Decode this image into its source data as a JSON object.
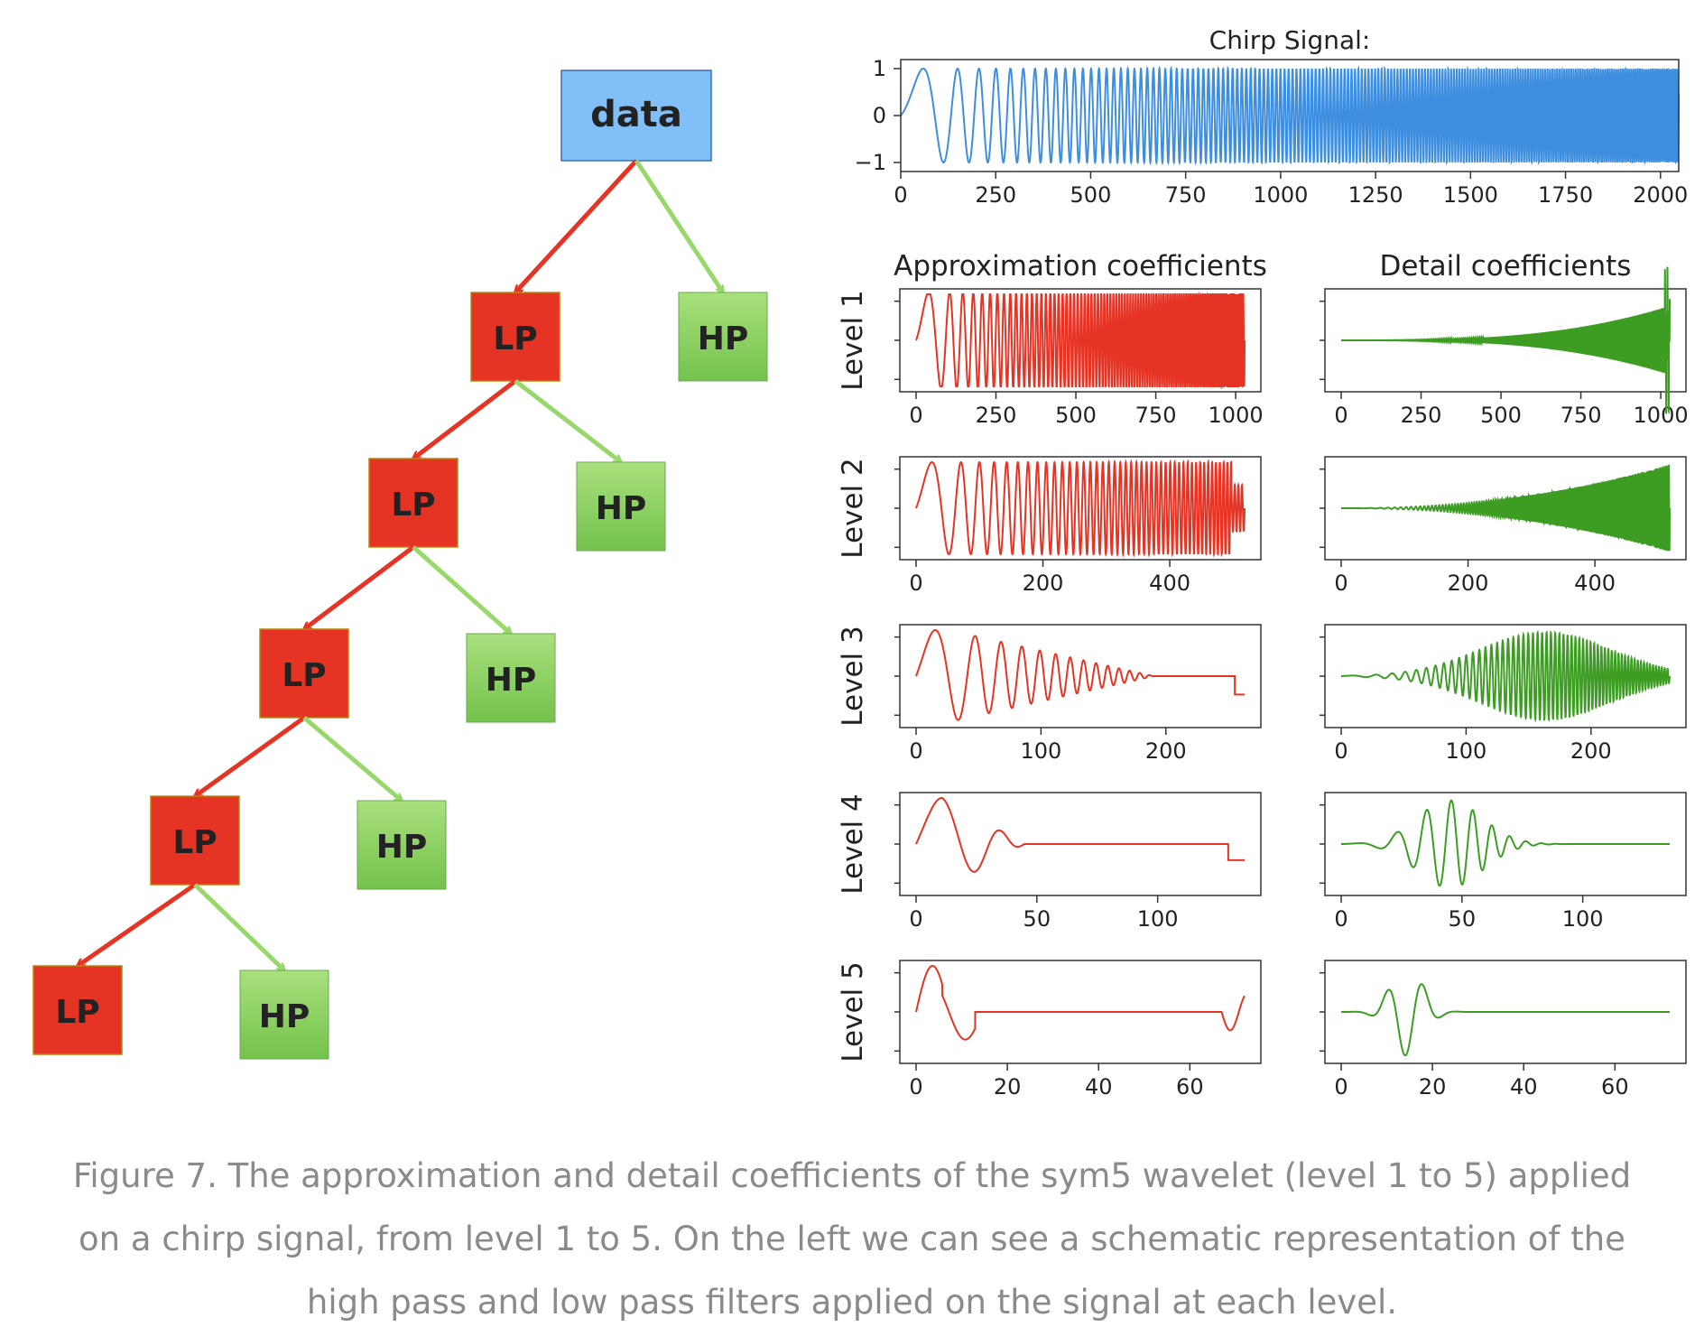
{
  "colors": {
    "lp_fill": "#e53324",
    "hp_fill_top": "#a9e07d",
    "hp_fill_bottom": "#74c24c",
    "data_fill": "#80bff8",
    "arrow_lp": "#e53324",
    "arrow_hp": "#98d86a",
    "chirp_line": "#3d8ede",
    "approx_line": "#e53324",
    "detail_line": "#3c9d22"
  },
  "tree": {
    "root_label": "data",
    "lp_label": "LP",
    "hp_label": "HP",
    "levels": 5
  },
  "chart_data": [
    {
      "id": "chirp",
      "type": "line",
      "title": "Chirp Signal:",
      "xlim": [
        0,
        2048
      ],
      "ylim": [
        -1,
        1
      ],
      "xticks": [
        "0",
        "250",
        "500",
        "750",
        "1000",
        "1250",
        "1500",
        "1750",
        "2000"
      ],
      "yticks": [
        "1",
        "0",
        "−1"
      ],
      "length": 2048
    },
    {
      "id": "coefficients",
      "type": "line",
      "column_titles": [
        "Approximation coefficients",
        "Detail coefficients"
      ],
      "levels": [
        {
          "label": "Level 1",
          "length": 1028,
          "xticks": [
            "0",
            "250",
            "500",
            "750",
            "1000"
          ]
        },
        {
          "label": "Level 2",
          "length": 518,
          "xticks": [
            "0",
            "200",
            "400"
          ]
        },
        {
          "label": "Level 3",
          "length": 263,
          "xticks": [
            "0",
            "100",
            "200"
          ]
        },
        {
          "label": "Level 4",
          "length": 136,
          "xticks": [
            "0",
            "50",
            "100"
          ]
        },
        {
          "label": "Level 5",
          "length": 72,
          "xticks": [
            "0",
            "20",
            "40",
            "60"
          ]
        }
      ]
    }
  ],
  "caption": "Figure 7. The approximation and detail coefficients of the sym5 wavelet (level 1 to 5) applied on a chirp signal, from level 1 to 5. On the left we can see a schematic representation of the high pass and low pass filters applied on the signal at each level."
}
